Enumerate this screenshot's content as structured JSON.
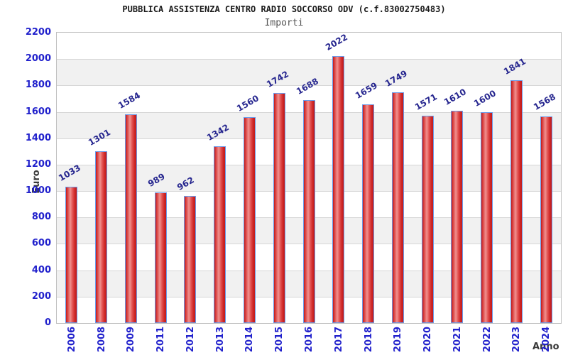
{
  "header": {
    "title": "PUBBLICA ASSISTENZA CENTRO RADIO SOCCORSO ODV (c.f.83002750483)",
    "subtitle": "Importi"
  },
  "chart_data": {
    "type": "bar",
    "title": "PUBBLICA ASSISTENZA CENTRO RADIO SOCCORSO ODV (c.f.83002750483)",
    "subtitle": "Importi",
    "xlabel": "Anno",
    "ylabel": "Euro",
    "categories": [
      "2006",
      "2008",
      "2009",
      "2011",
      "2012",
      "2013",
      "2014",
      "2015",
      "2016",
      "2017",
      "2018",
      "2019",
      "2020",
      "2021",
      "2022",
      "2023",
      "2024"
    ],
    "values": [
      1033,
      1301,
      1584,
      989,
      962,
      1342,
      1560,
      1742,
      1688,
      2022,
      1659,
      1749,
      1571,
      1610,
      1600,
      1841,
      1568
    ],
    "ylim": [
      0,
      2200
    ],
    "ytick_step": 200,
    "grid": true,
    "legend": false,
    "band_pattern": "alternating horizontal white/gray bands starting white at top"
  },
  "colors": {
    "title_color": "#1a1a1a",
    "subtitle_color": "#555555",
    "tick_blue": "#2121cc",
    "value_label": "#26268f",
    "axis_label_color": "#3a3a3a",
    "plot_border": "#c0c0c0",
    "grid_line": "#d6d6d6",
    "band_white": "#ffffff",
    "band_gray": "#f1f1f1",
    "bar_dark_red": "#c11c1c",
    "bar_light_red": "#f0918f",
    "bar_border_blue": "#6b9ae8"
  }
}
